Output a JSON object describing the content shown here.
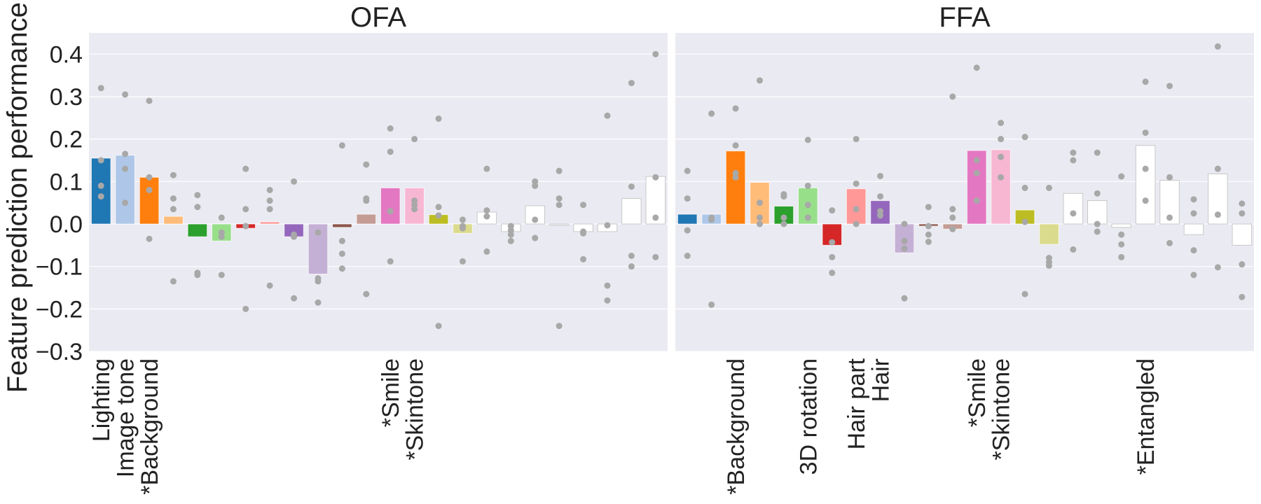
{
  "chart_data": {
    "type": "bar",
    "ylabel": "Feature prediction performance (",
    "ylim": [
      -0.3,
      0.45
    ],
    "yticks": [
      -0.3,
      -0.2,
      -0.1,
      0.0,
      0.1,
      0.2,
      0.3,
      0.4
    ],
    "ytick_labels": [
      "−0.3",
      "−0.2",
      "−0.1",
      "0.0",
      "0.1",
      "0.2",
      "0.3",
      "0.4"
    ],
    "grid": true,
    "background": "#eaeaf2",
    "dot_color": "#a8a8a8",
    "panels": [
      {
        "title": "OFA",
        "bars": [
          {
            "value": 0.155,
            "color": "#1f77b4",
            "label": "Lighting",
            "points": [
              0.32,
              0.15,
              0.09,
              0.065
            ]
          },
          {
            "value": 0.162,
            "color": "#aec7e8",
            "label": "Image tone",
            "points": [
              0.305,
              0.165,
              0.13,
              0.05
            ]
          },
          {
            "value": 0.11,
            "color": "#ff7f0e",
            "label": "*Background",
            "points": [
              0.29,
              0.11,
              0.08,
              -0.035
            ]
          },
          {
            "value": 0.018,
            "color": "#ffbb78",
            "label": "",
            "points": [
              0.115,
              0.06,
              0.035,
              -0.135
            ]
          },
          {
            "value": -0.03,
            "color": "#2ca02c",
            "label": "",
            "points": [
              0.068,
              0.04,
              -0.115,
              -0.12
            ]
          },
          {
            "value": -0.04,
            "color": "#98df8a",
            "label": "",
            "points": [
              0.015,
              -0.02,
              -0.03,
              -0.12
            ]
          },
          {
            "value": -0.01,
            "color": "#d62728",
            "label": "",
            "points": [
              0.13,
              0.035,
              -0.005,
              -0.2
            ]
          },
          {
            "value": 0.005,
            "color": "#ff9896",
            "label": "",
            "points": [
              0.08,
              0.055,
              0.035,
              -0.145
            ]
          },
          {
            "value": -0.03,
            "color": "#9467bd",
            "label": "",
            "points": [
              0.1,
              -0.025,
              -0.03,
              -0.175
            ]
          },
          {
            "value": -0.118,
            "color": "#c5b0d5",
            "label": "",
            "points": [
              -0.02,
              -0.128,
              -0.135,
              -0.185
            ]
          },
          {
            "value": -0.008,
            "color": "#8c564b",
            "label": "",
            "points": [
              0.185,
              -0.04,
              -0.07,
              -0.105
            ]
          },
          {
            "value": 0.023,
            "color": "#c49c94",
            "label": "",
            "points": [
              0.14,
              0.06,
              0.055,
              -0.165
            ]
          },
          {
            "value": 0.085,
            "color": "#e377c2",
            "label": "*Smile",
            "points": [
              0.225,
              0.17,
              0.03,
              -0.088
            ]
          },
          {
            "value": 0.085,
            "color": "#f7b6d2",
            "label": "*Skintone",
            "points": [
              0.2,
              0.055,
              0.045,
              0.035
            ]
          },
          {
            "value": 0.022,
            "color": "#bcbd22",
            "label": "",
            "points": [
              0.248,
              0.04,
              0.02,
              -0.24
            ]
          },
          {
            "value": -0.022,
            "color": "#dbdb8d",
            "label": "",
            "points": [
              0.01,
              -0.005,
              -0.01,
              -0.088
            ]
          },
          {
            "value": 0.028,
            "color": "#ffffff",
            "label": "",
            "points": [
              0.13,
              0.032,
              0.018,
              -0.065
            ]
          },
          {
            "value": -0.018,
            "color": "#ffffff",
            "label": "",
            "points": [
              -0.005,
              -0.015,
              -0.025,
              -0.04
            ]
          },
          {
            "value": 0.043,
            "color": "#ffffff",
            "label": "",
            "points": [
              0.1,
              0.09,
              0.01,
              -0.033
            ]
          },
          {
            "value": -0.003,
            "color": "#ffffff",
            "label": "",
            "points": [
              0.125,
              0.06,
              0.045,
              -0.24
            ]
          },
          {
            "value": -0.018,
            "color": "#ffffff",
            "label": "",
            "points": [
              0.045,
              -0.018,
              -0.022,
              -0.083
            ]
          },
          {
            "value": -0.018,
            "color": "#ffffff",
            "label": "",
            "points": [
              0.255,
              -0.003,
              -0.145,
              -0.18
            ]
          },
          {
            "value": 0.06,
            "color": "#ffffff",
            "label": "",
            "points": [
              0.332,
              0.088,
              -0.075,
              -0.1
            ]
          },
          {
            "value": 0.112,
            "color": "#ffffff",
            "label": "",
            "points": [
              0.4,
              0.11,
              0.015,
              -0.078
            ]
          }
        ]
      },
      {
        "title": "FFA",
        "bars": [
          {
            "value": 0.023,
            "color": "#1f77b4",
            "label": "",
            "points": [
              0.125,
              0.06,
              -0.015,
              -0.075
            ]
          },
          {
            "value": 0.023,
            "color": "#aec7e8",
            "label": "",
            "points": [
              0.26,
              0.015,
              0.01,
              -0.19
            ]
          },
          {
            "value": 0.172,
            "color": "#ff7f0e",
            "label": "*Background",
            "points": [
              0.272,
              0.185,
              0.12,
              0.11
            ]
          },
          {
            "value": 0.098,
            "color": "#ffbb78",
            "label": "",
            "points": [
              0.338,
              0.05,
              0.015,
              0.0
            ]
          },
          {
            "value": 0.042,
            "color": "#2ca02c",
            "label": "",
            "points": [
              0.07,
              0.065,
              0.015,
              0.0
            ]
          },
          {
            "value": 0.085,
            "color": "#98df8a",
            "label": "3D rotation",
            "points": [
              0.198,
              0.09,
              0.045,
              0.015
            ]
          },
          {
            "value": -0.05,
            "color": "#d62728",
            "label": "",
            "points": [
              0.032,
              -0.043,
              -0.078,
              -0.115
            ]
          },
          {
            "value": 0.083,
            "color": "#ff9896",
            "label": "Hair part",
            "points": [
              0.2,
              0.095,
              0.035,
              0.0
            ]
          },
          {
            "value": 0.055,
            "color": "#9467bd",
            "label": "Hair",
            "points": [
              0.113,
              0.065,
              0.03,
              0.02
            ]
          },
          {
            "value": -0.068,
            "color": "#c5b0d5",
            "label": "",
            "points": [
              0.0,
              -0.04,
              -0.058,
              -0.175
            ]
          },
          {
            "value": -0.005,
            "color": "#8c564b",
            "label": "",
            "points": [
              0.04,
              -0.005,
              -0.025,
              -0.042
            ]
          },
          {
            "value": -0.012,
            "color": "#c49c94",
            "label": "",
            "points": [
              0.3,
              0.035,
              0.015,
              -0.012
            ]
          },
          {
            "value": 0.173,
            "color": "#e377c2",
            "label": "*Smile",
            "points": [
              0.368,
              0.15,
              0.12,
              0.055
            ]
          },
          {
            "value": 0.175,
            "color": "#f7b6d2",
            "label": "*Skintone",
            "points": [
              0.238,
              0.2,
              0.158,
              0.11
            ]
          },
          {
            "value": 0.033,
            "color": "#bcbd22",
            "label": "",
            "points": [
              0.205,
              0.085,
              0.005,
              -0.165
            ]
          },
          {
            "value": -0.048,
            "color": "#dbdb8d",
            "label": "",
            "points": [
              0.085,
              -0.08,
              -0.09,
              -0.098
            ]
          },
          {
            "value": 0.072,
            "color": "#ffffff",
            "label": "",
            "points": [
              0.168,
              0.15,
              0.025,
              -0.06
            ]
          },
          {
            "value": 0.055,
            "color": "#ffffff",
            "label": "",
            "points": [
              0.168,
              0.072,
              0.0,
              -0.018
            ]
          },
          {
            "value": -0.008,
            "color": "#ffffff",
            "label": "",
            "points": [
              0.112,
              -0.025,
              -0.048,
              -0.078
            ]
          },
          {
            "value": 0.185,
            "color": "#ffffff",
            "label": "*Entangled",
            "points": [
              0.335,
              0.215,
              0.13,
              0.055
            ]
          },
          {
            "value": 0.103,
            "color": "#ffffff",
            "label": "",
            "points": [
              0.325,
              0.11,
              0.015,
              -0.045
            ]
          },
          {
            "value": -0.025,
            "color": "#ffffff",
            "label": "",
            "points": [
              0.058,
              0.025,
              -0.062,
              -0.12
            ]
          },
          {
            "value": 0.118,
            "color": "#ffffff",
            "label": "",
            "points": [
              0.418,
              0.13,
              0.022,
              -0.102
            ]
          },
          {
            "value": -0.05,
            "color": "#ffffff",
            "label": "",
            "points": [
              0.048,
              0.025,
              -0.095,
              -0.172
            ]
          }
        ]
      }
    ]
  }
}
